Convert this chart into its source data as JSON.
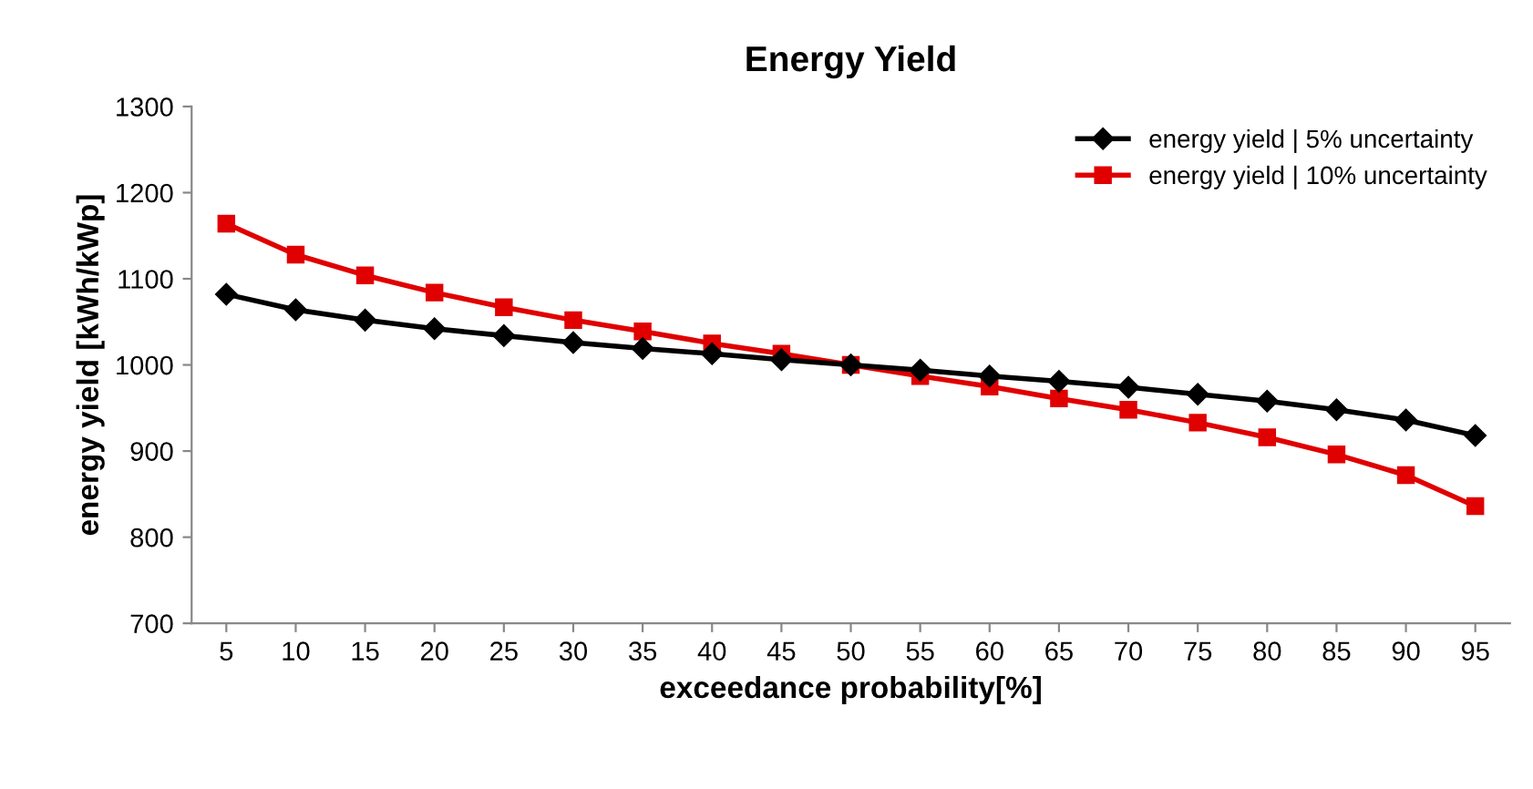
{
  "chart_data": {
    "type": "line",
    "title": "Energy Yield",
    "xlabel": "exceedance probability[%]",
    "ylabel": "energy yield [kWh/kWp]",
    "categories": [
      "5",
      "10",
      "15",
      "20",
      "25",
      "30",
      "35",
      "40",
      "45",
      "50",
      "55",
      "60",
      "65",
      "70",
      "75",
      "80",
      "85",
      "90",
      "95"
    ],
    "series": [
      {
        "name": "energy yield | 5% uncertainty",
        "color": "#000000",
        "marker": "diamond",
        "values": [
          1082,
          1064,
          1052,
          1042,
          1034,
          1026,
          1019,
          1013,
          1006,
          1000,
          994,
          987,
          981,
          974,
          966,
          958,
          948,
          936,
          918
        ]
      },
      {
        "name": "energy yield | 10% uncertainty",
        "color": "#e00000",
        "marker": "square",
        "values": [
          1164,
          1128,
          1104,
          1084,
          1067,
          1052,
          1039,
          1025,
          1013,
          1000,
          987,
          975,
          961,
          948,
          933,
          916,
          896,
          872,
          836
        ]
      }
    ],
    "ylim": [
      700,
      1300
    ],
    "yticks": [
      700,
      800,
      900,
      1000,
      1100,
      1200,
      1300
    ],
    "grid": false,
    "legend": "top right",
    "line_style": "solid"
  }
}
